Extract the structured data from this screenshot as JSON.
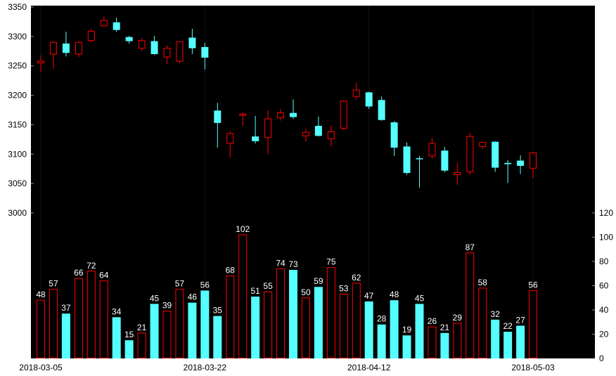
{
  "chart_data": {
    "type": "candlestick",
    "background": "#000000",
    "colors": {
      "up": "#ff0000",
      "down": "#55ffff",
      "grid": "#3a3a3a"
    },
    "x_tick_labels": [
      {
        "label": "2018-03-05",
        "index": 0
      },
      {
        "label": "2018-03-22",
        "index": 13
      },
      {
        "label": "2018-04-12",
        "index": 26
      },
      {
        "label": "2018-05-03",
        "index": 39
      }
    ],
    "price_axis": {
      "ylim": [
        3000,
        3350
      ],
      "ticks": [
        3000,
        3050,
        3100,
        3150,
        3200,
        3250,
        3300,
        3350
      ]
    },
    "volume_axis": {
      "ylim": [
        0,
        120
      ],
      "ticks": [
        0,
        20,
        40,
        60,
        80,
        100,
        120
      ]
    },
    "candles": [
      {
        "open": 3255,
        "close": 3258,
        "high": 3268,
        "low": 3240,
        "volume": 48
      },
      {
        "open": 3270,
        "close": 3290,
        "high": 3292,
        "low": 3245,
        "volume": 57
      },
      {
        "open": 3288,
        "close": 3272,
        "high": 3308,
        "low": 3266,
        "volume": 37
      },
      {
        "open": 3270,
        "close": 3290,
        "high": 3292,
        "low": 3265,
        "volume": 66
      },
      {
        "open": 3293,
        "close": 3309,
        "high": 3312,
        "low": 3290,
        "volume": 72
      },
      {
        "open": 3318,
        "close": 3327,
        "high": 3334,
        "low": 3317,
        "volume": 64
      },
      {
        "open": 3324,
        "close": 3311,
        "high": 3332,
        "low": 3308,
        "volume": 34
      },
      {
        "open": 3299,
        "close": 3292,
        "high": 3301,
        "low": 3288,
        "volume": 15
      },
      {
        "open": 3280,
        "close": 3293,
        "high": 3297,
        "low": 3275,
        "volume": 21
      },
      {
        "open": 3292,
        "close": 3270,
        "high": 3301,
        "low": 3269,
        "volume": 45
      },
      {
        "open": 3265,
        "close": 3280,
        "high": 3285,
        "low": 3253,
        "volume": 39
      },
      {
        "open": 3258,
        "close": 3291,
        "high": 3292,
        "low": 3255,
        "volume": 57
      },
      {
        "open": 3298,
        "close": 3280,
        "high": 3313,
        "low": 3270,
        "volume": 46
      },
      {
        "open": 3282,
        "close": 3264,
        "high": 3289,
        "low": 3244,
        "volume": 56
      },
      {
        "open": 3174,
        "close": 3153,
        "high": 3187,
        "low": 3111,
        "volume": 35
      },
      {
        "open": 3118,
        "close": 3135,
        "high": 3139,
        "low": 3094,
        "volume": 68
      },
      {
        "open": 3166,
        "close": 3168,
        "high": 3171,
        "low": 3148,
        "volume": 102
      },
      {
        "open": 3130,
        "close": 3122,
        "high": 3165,
        "low": 3118,
        "volume": 51
      },
      {
        "open": 3128,
        "close": 3160,
        "high": 3174,
        "low": 3100,
        "volume": 55
      },
      {
        "open": 3162,
        "close": 3170,
        "high": 3177,
        "low": 3157,
        "volume": 74
      },
      {
        "open": 3170,
        "close": 3163,
        "high": 3193,
        "low": 3160,
        "volume": 73
      },
      {
        "open": 3131,
        "close": 3137,
        "high": 3143,
        "low": 3121,
        "volume": 50
      },
      {
        "open": 3148,
        "close": 3131,
        "high": 3164,
        "low": 3130,
        "volume": 59
      },
      {
        "open": 3126,
        "close": 3138,
        "high": 3149,
        "low": 3113,
        "volume": 75
      },
      {
        "open": 3144,
        "close": 3190,
        "high": 3191,
        "low": 3140,
        "volume": 53
      },
      {
        "open": 3198,
        "close": 3209,
        "high": 3221,
        "low": 3193,
        "volume": 62
      },
      {
        "open": 3205,
        "close": 3181,
        "high": 3206,
        "low": 3177,
        "volume": 47
      },
      {
        "open": 3192,
        "close": 3158,
        "high": 3198,
        "low": 3157,
        "volume": 28
      },
      {
        "open": 3154,
        "close": 3111,
        "high": 3156,
        "low": 3097,
        "volume": 48
      },
      {
        "open": 3113,
        "close": 3068,
        "high": 3120,
        "low": 3065,
        "volume": 19
      },
      {
        "open": 3093,
        "close": 3092,
        "high": 3097,
        "low": 3043,
        "volume": 45
      },
      {
        "open": 3097,
        "close": 3118,
        "high": 3127,
        "low": 3093,
        "volume": 26
      },
      {
        "open": 3106,
        "close": 3072,
        "high": 3112,
        "low": 3069,
        "volume": 21
      },
      {
        "open": 3065,
        "close": 3069,
        "high": 3085,
        "low": 3048,
        "volume": 29
      },
      {
        "open": 3070,
        "close": 3130,
        "high": 3136,
        "low": 3065,
        "volume": 87
      },
      {
        "open": 3113,
        "close": 3120,
        "high": 3121,
        "low": 3109,
        "volume": 58
      },
      {
        "open": 3121,
        "close": 3077,
        "high": 3122,
        "low": 3070,
        "volume": 32
      },
      {
        "open": 3085,
        "close": 3083,
        "high": 3090,
        "low": 3051,
        "volume": 22
      },
      {
        "open": 3089,
        "close": 3080,
        "high": 3098,
        "low": 3066,
        "volume": 27
      },
      {
        "open": 3076,
        "close": 3102,
        "high": 3104,
        "low": 3059,
        "volume": 56
      }
    ]
  }
}
